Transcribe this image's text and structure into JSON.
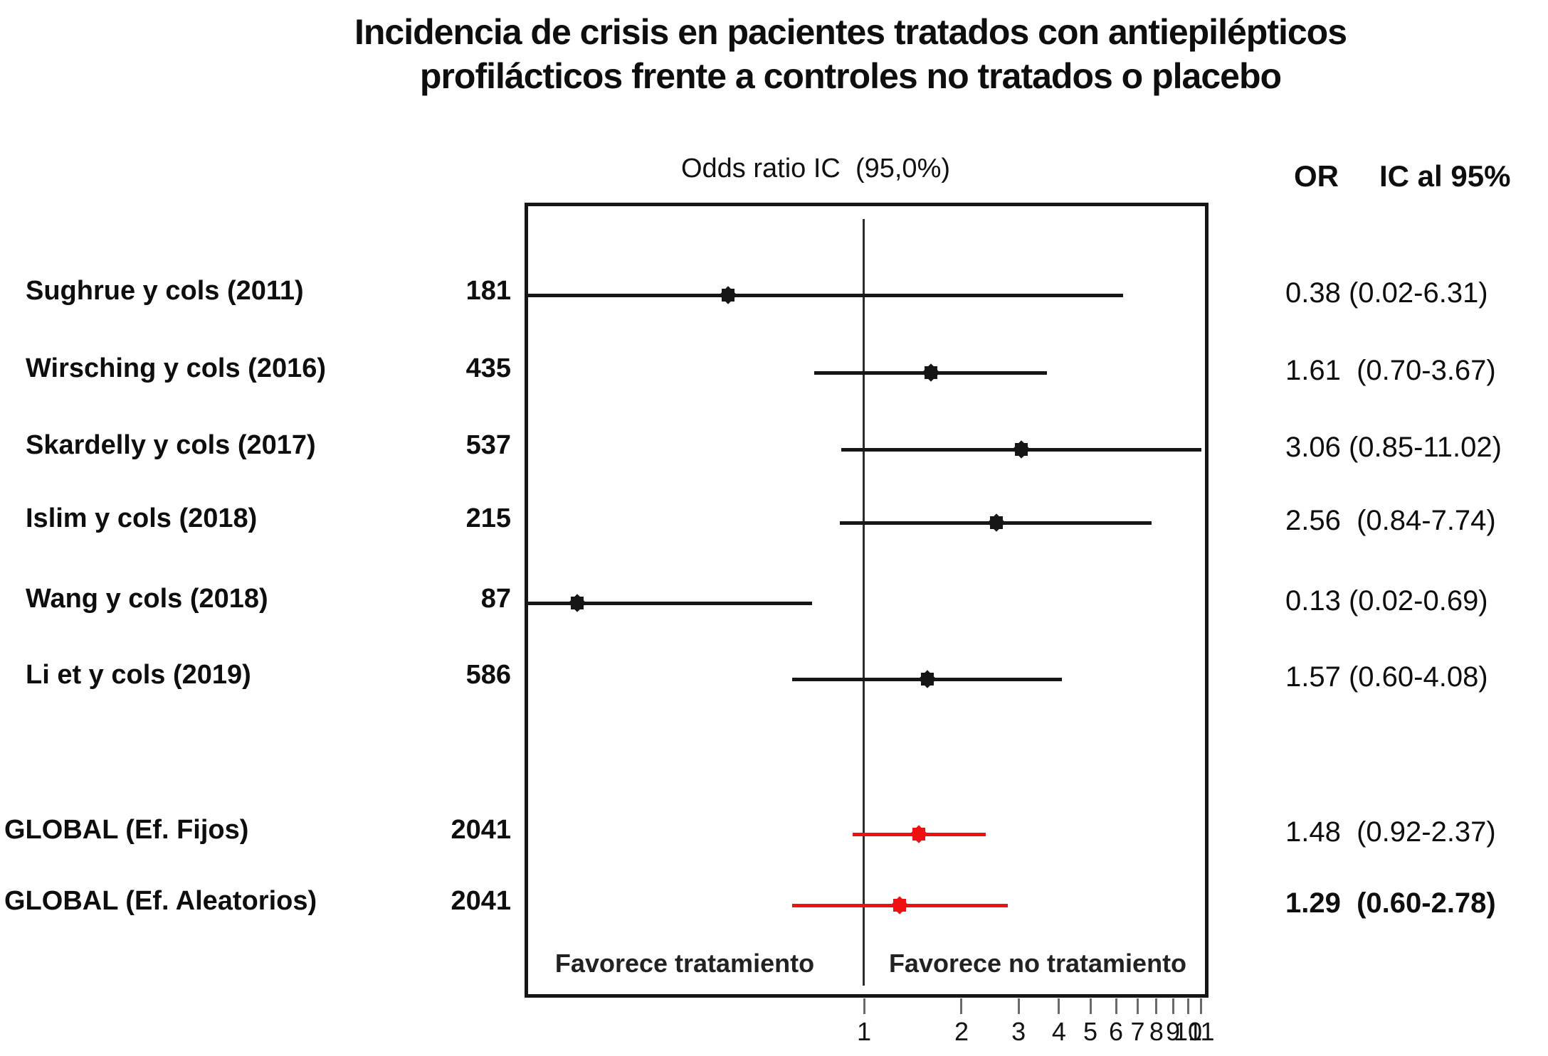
{
  "title": {
    "line1": "Incidencia de crisis en pacientes tratados con antiepilépticos",
    "line2": "profilácticos frente a controles no tratados o placebo"
  },
  "plot_header": "Odds ratio IC  (95,0%)",
  "column_headers": {
    "or": "OR",
    "ci": "IC al 95%"
  },
  "chart_data": {
    "type": "forest",
    "title": "Incidencia de crisis en pacientes tratados con antiepilépticos profilácticos frente a controles no tratados o placebo",
    "x_axis": {
      "scale": "log",
      "ticks": [
        1,
        2,
        3,
        4,
        5,
        6,
        7,
        8,
        9,
        10,
        11
      ],
      "visible_range": [
        0.09,
        11.6
      ],
      "reference_line": 1
    },
    "favors": {
      "left": "Favorece tratamiento",
      "right": "Favorece no tratamiento"
    },
    "study_color": "#161616",
    "summary_color": "#ee1111",
    "studies": [
      {
        "label": "Sughrue y cols (2011)",
        "n": "181",
        "or": 0.38,
        "ci_low": 0.02,
        "ci_high": 6.31,
        "or_ci_text": "0.38 (0.02-6.31)",
        "summary": false,
        "bold": false
      },
      {
        "label": "Wirsching y cols (2016)",
        "n": "435",
        "or": 1.61,
        "ci_low": 0.7,
        "ci_high": 3.67,
        "or_ci_text": "1.61  (0.70-3.67)",
        "summary": false,
        "bold": false
      },
      {
        "label": "Skardelly y cols (2017)",
        "n": "537",
        "or": 3.06,
        "ci_low": 0.85,
        "ci_high": 11.02,
        "or_ci_text": "3.06 (0.85-11.02)",
        "summary": false,
        "bold": false
      },
      {
        "label": "Islim y cols (2018)",
        "n": "215",
        "or": 2.56,
        "ci_low": 0.84,
        "ci_high": 7.74,
        "or_ci_text": "2.56  (0.84-7.74)",
        "summary": false,
        "bold": false
      },
      {
        "label": "Wang y cols (2018)",
        "n": "87",
        "or": 0.13,
        "ci_low": 0.02,
        "ci_high": 0.69,
        "or_ci_text": "0.13 (0.02-0.69)",
        "summary": false,
        "bold": false
      },
      {
        "label": "Li et y cols (2019)",
        "n": "586",
        "or": 1.57,
        "ci_low": 0.6,
        "ci_high": 4.08,
        "or_ci_text": "1.57 (0.60-4.08)",
        "summary": false,
        "bold": false
      },
      {
        "label": "GLOBAL (Ef. Fijos)",
        "n": "2041",
        "or": 1.48,
        "ci_low": 0.92,
        "ci_high": 2.37,
        "or_ci_text": "1.48  (0.92-2.37)",
        "summary": true,
        "bold": false
      },
      {
        "label": "GLOBAL (Ef. Aleatorios)",
        "n": "2041",
        "or": 1.29,
        "ci_low": 0.6,
        "ci_high": 2.78,
        "or_ci_text": "1.29  (0.60-2.78)",
        "summary": true,
        "bold": true
      }
    ]
  }
}
